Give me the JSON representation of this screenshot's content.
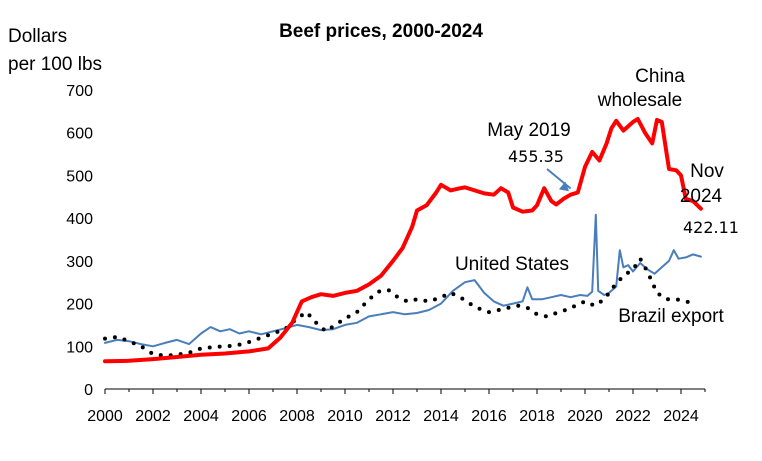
{
  "chart_data": {
    "type": "line",
    "title": "Beef prices, 2000-2024",
    "ylabel_lines": [
      "Dollars",
      "per 100 lbs"
    ],
    "xlabel": "",
    "xlim": [
      2000,
      2025
    ],
    "ylim": [
      0,
      700
    ],
    "x_ticks": [
      "2000",
      "2002",
      "2004",
      "2006",
      "2008",
      "2010",
      "2012",
      "2014",
      "2016",
      "2018",
      "2020",
      "2022",
      "2024"
    ],
    "y_ticks": [
      "0",
      "100",
      "200",
      "300",
      "400",
      "500",
      "600",
      "700"
    ],
    "grid": false,
    "series": [
      {
        "name": "China wholesale",
        "color": "#ff0000",
        "style": "solid",
        "points": [
          [
            2000.0,
            65
          ],
          [
            2001.0,
            66
          ],
          [
            2002.0,
            70
          ],
          [
            2003.0,
            75
          ],
          [
            2004.0,
            80
          ],
          [
            2005.0,
            83
          ],
          [
            2006.0,
            88
          ],
          [
            2006.8,
            95
          ],
          [
            2007.3,
            120
          ],
          [
            2007.8,
            155
          ],
          [
            2008.2,
            205
          ],
          [
            2008.6,
            215
          ],
          [
            2009.0,
            222
          ],
          [
            2009.5,
            218
          ],
          [
            2010.0,
            225
          ],
          [
            2010.5,
            230
          ],
          [
            2011.0,
            245
          ],
          [
            2011.5,
            265
          ],
          [
            2012.0,
            300
          ],
          [
            2012.4,
            330
          ],
          [
            2012.8,
            380
          ],
          [
            2013.0,
            418
          ],
          [
            2013.4,
            430
          ],
          [
            2013.8,
            460
          ],
          [
            2014.0,
            478
          ],
          [
            2014.4,
            465
          ],
          [
            2014.8,
            470
          ],
          [
            2015.0,
            472
          ],
          [
            2015.4,
            465
          ],
          [
            2015.8,
            458
          ],
          [
            2016.2,
            455
          ],
          [
            2016.5,
            470
          ],
          [
            2016.8,
            460
          ],
          [
            2017.0,
            425
          ],
          [
            2017.4,
            415
          ],
          [
            2017.8,
            418
          ],
          [
            2018.0,
            430
          ],
          [
            2018.3,
            470
          ],
          [
            2018.6,
            440
          ],
          [
            2018.8,
            432
          ],
          [
            2019.1,
            445
          ],
          [
            2019.4,
            455
          ],
          [
            2019.7,
            460
          ],
          [
            2020.0,
            520
          ],
          [
            2020.3,
            555
          ],
          [
            2020.6,
            535
          ],
          [
            2020.9,
            575
          ],
          [
            2021.1,
            610
          ],
          [
            2021.3,
            628
          ],
          [
            2021.6,
            605
          ],
          [
            2022.0,
            625
          ],
          [
            2022.2,
            632
          ],
          [
            2022.5,
            600
          ],
          [
            2022.8,
            575
          ],
          [
            2023.0,
            630
          ],
          [
            2023.2,
            625
          ],
          [
            2023.5,
            515
          ],
          [
            2023.8,
            512
          ],
          [
            2024.0,
            500
          ],
          [
            2024.2,
            445
          ],
          [
            2024.5,
            440
          ],
          [
            2024.83,
            422
          ]
        ]
      },
      {
        "name": "United States",
        "color": "#4a7ebb",
        "style": "solid",
        "points": [
          [
            2000.0,
            108
          ],
          [
            2000.5,
            115
          ],
          [
            2001.0,
            112
          ],
          [
            2001.5,
            105
          ],
          [
            2002.0,
            100
          ],
          [
            2002.5,
            108
          ],
          [
            2003.0,
            115
          ],
          [
            2003.5,
            105
          ],
          [
            2004.0,
            130
          ],
          [
            2004.4,
            145
          ],
          [
            2004.8,
            135
          ],
          [
            2005.2,
            140
          ],
          [
            2005.6,
            130
          ],
          [
            2006.0,
            135
          ],
          [
            2006.5,
            128
          ],
          [
            2007.0,
            135
          ],
          [
            2007.5,
            142
          ],
          [
            2008.0,
            150
          ],
          [
            2008.5,
            145
          ],
          [
            2009.0,
            138
          ],
          [
            2009.5,
            140
          ],
          [
            2010.0,
            150
          ],
          [
            2010.5,
            155
          ],
          [
            2011.0,
            170
          ],
          [
            2011.5,
            175
          ],
          [
            2012.0,
            180
          ],
          [
            2012.5,
            175
          ],
          [
            2013.0,
            178
          ],
          [
            2013.5,
            185
          ],
          [
            2014.0,
            200
          ],
          [
            2014.5,
            230
          ],
          [
            2015.0,
            250
          ],
          [
            2015.4,
            255
          ],
          [
            2015.8,
            225
          ],
          [
            2016.2,
            205
          ],
          [
            2016.6,
            195
          ],
          [
            2017.0,
            200
          ],
          [
            2017.4,
            205
          ],
          [
            2017.6,
            238
          ],
          [
            2017.8,
            210
          ],
          [
            2018.2,
            210
          ],
          [
            2018.6,
            215
          ],
          [
            2019.0,
            220
          ],
          [
            2019.4,
            215
          ],
          [
            2019.8,
            220
          ],
          [
            2020.1,
            218
          ],
          [
            2020.3,
            228
          ],
          [
            2020.45,
            408
          ],
          [
            2020.55,
            230
          ],
          [
            2020.8,
            220
          ],
          [
            2021.0,
            225
          ],
          [
            2021.3,
            240
          ],
          [
            2021.45,
            325
          ],
          [
            2021.6,
            285
          ],
          [
            2021.8,
            290
          ],
          [
            2022.0,
            275
          ],
          [
            2022.3,
            295
          ],
          [
            2022.6,
            280
          ],
          [
            2022.9,
            270
          ],
          [
            2023.2,
            285
          ],
          [
            2023.5,
            300
          ],
          [
            2023.7,
            325
          ],
          [
            2023.9,
            305
          ],
          [
            2024.2,
            308
          ],
          [
            2024.5,
            315
          ],
          [
            2024.83,
            310
          ]
        ]
      },
      {
        "name": "Brazil export",
        "color": "#000000",
        "style": "dotted",
        "points": [
          [
            2000.0,
            118
          ],
          [
            2000.5,
            122
          ],
          [
            2001.0,
            112
          ],
          [
            2001.5,
            100
          ],
          [
            2002.0,
            82
          ],
          [
            2002.5,
            78
          ],
          [
            2003.0,
            80
          ],
          [
            2003.5,
            85
          ],
          [
            2004.0,
            95
          ],
          [
            2004.5,
            98
          ],
          [
            2005.0,
            100
          ],
          [
            2005.5,
            102
          ],
          [
            2006.0,
            110
          ],
          [
            2006.5,
            120
          ],
          [
            2007.0,
            130
          ],
          [
            2007.5,
            140
          ],
          [
            2008.0,
            165
          ],
          [
            2008.4,
            180
          ],
          [
            2008.8,
            155
          ],
          [
            2009.2,
            135
          ],
          [
            2009.6,
            150
          ],
          [
            2010.0,
            165
          ],
          [
            2010.5,
            180
          ],
          [
            2011.0,
            210
          ],
          [
            2011.4,
            228
          ],
          [
            2011.8,
            232
          ],
          [
            2012.2,
            215
          ],
          [
            2012.6,
            205
          ],
          [
            2013.0,
            210
          ],
          [
            2013.5,
            205
          ],
          [
            2014.0,
            215
          ],
          [
            2014.4,
            225
          ],
          [
            2014.8,
            215
          ],
          [
            2015.2,
            200
          ],
          [
            2015.6,
            188
          ],
          [
            2016.0,
            180
          ],
          [
            2016.4,
            185
          ],
          [
            2016.8,
            190
          ],
          [
            2017.2,
            195
          ],
          [
            2017.6,
            190
          ],
          [
            2018.0,
            175
          ],
          [
            2018.4,
            170
          ],
          [
            2018.8,
            178
          ],
          [
            2019.2,
            185
          ],
          [
            2019.6,
            195
          ],
          [
            2020.0,
            205
          ],
          [
            2020.4,
            195
          ],
          [
            2020.8,
            210
          ],
          [
            2021.2,
            240
          ],
          [
            2021.6,
            265
          ],
          [
            2022.0,
            280
          ],
          [
            2022.3,
            305
          ],
          [
            2022.6,
            275
          ],
          [
            2023.0,
            225
          ],
          [
            2023.4,
            210
          ],
          [
            2023.8,
            210
          ],
          [
            2024.2,
            205
          ],
          [
            2024.6,
            200
          ]
        ]
      }
    ],
    "annotations": [
      {
        "id": "china",
        "lines": [
          "China",
          "wholesale"
        ]
      },
      {
        "id": "us",
        "lines": [
          "United States"
        ]
      },
      {
        "id": "brazil",
        "lines": [
          "Brazil export"
        ]
      },
      {
        "id": "may2019",
        "lines": [
          "May 2019"
        ],
        "value_label": "455.35",
        "x": 2019.4,
        "y": 455.35
      },
      {
        "id": "nov2024",
        "lines": [
          "Nov",
          "2024"
        ],
        "value_label": "422.11",
        "x": 2024.83,
        "y": 422.11
      }
    ]
  }
}
